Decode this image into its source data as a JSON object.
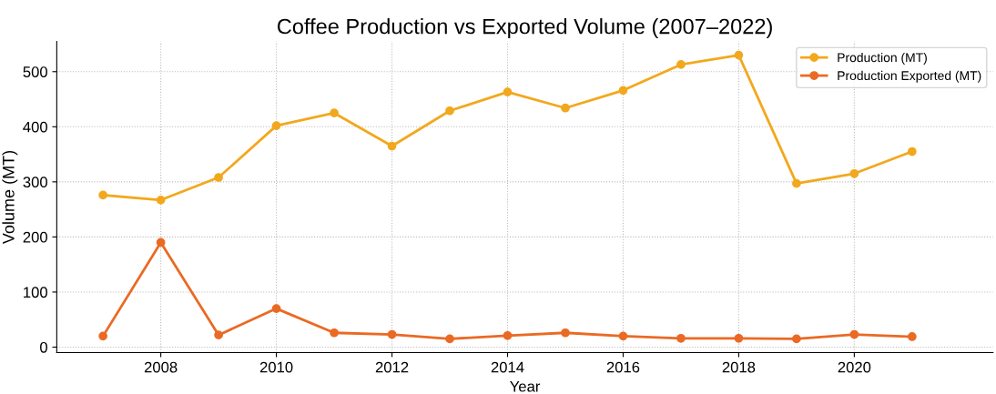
{
  "chart_data": {
    "type": "line",
    "title": "Coffee Production vs Exported Volume (2007–2022)",
    "xlabel": "Year",
    "ylabel": "Volume (MT)",
    "x": [
      2007,
      2008,
      2009,
      2010,
      2011,
      2012,
      2013,
      2014,
      2015,
      2016,
      2017,
      2018,
      2019,
      2020,
      2021
    ],
    "series": [
      {
        "name": "Production (MT)",
        "color": "#f2a81d",
        "values": [
          276,
          267,
          308,
          402,
          425,
          365,
          429,
          463,
          434,
          466,
          513,
          530,
          297,
          315,
          355
        ]
      },
      {
        "name": "Production Exported (MT)",
        "color": "#ea6a24",
        "values": [
          20,
          190,
          22,
          70,
          26,
          23,
          15,
          21,
          26,
          20,
          16,
          16,
          15,
          23,
          19
        ]
      }
    ],
    "xlim": [
      2006.2,
      2022.4
    ],
    "ylim": [
      -10,
      555
    ],
    "xticks": [
      2008,
      2010,
      2012,
      2014,
      2016,
      2018,
      2020
    ],
    "yticks": [
      0,
      100,
      200,
      300,
      400,
      500
    ],
    "grid": true,
    "legend": "top right",
    "marker": "circle",
    "line_style": "solid"
  }
}
